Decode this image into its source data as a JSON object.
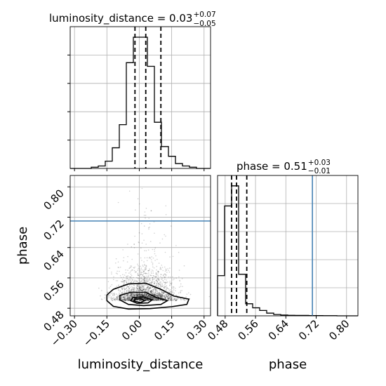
{
  "chart_data": {
    "type": "corner",
    "parameters": [
      "luminosity_distance",
      "phase"
    ],
    "truths": {
      "luminosity_distance": null,
      "phase": 0.71
    },
    "luminosity_distance": {
      "title_prefix": "luminosity_distance = 0.03",
      "title_plus": "+0.07",
      "title_minus": "−0.05",
      "median": 0.03,
      "q_low": -0.02,
      "q_high": 0.1,
      "range": [
        -0.32,
        0.33
      ],
      "ticks": [
        -0.3,
        -0.15,
        0.0,
        0.15,
        0.3
      ],
      "tick_labels": [
        "−0.30",
        "−0.15",
        "0.00",
        "0.15",
        "0.30"
      ],
      "xlabel": "luminosity_distance",
      "hist_edges": [
        -0.32,
        -0.2875,
        -0.255,
        -0.2225,
        -0.19,
        -0.1575,
        -0.125,
        -0.0925,
        -0.06,
        -0.0275,
        0.005,
        0.0375,
        0.07,
        0.1025,
        0.135,
        0.1675,
        0.2,
        0.2325,
        0.265,
        0.2975,
        0.33
      ],
      "hist_counts": [
        0,
        0,
        0,
        1,
        2,
        6,
        17,
        36,
        87,
        108,
        108,
        84,
        38,
        18,
        10,
        4,
        2,
        1,
        0,
        0
      ]
    },
    "phase": {
      "title_prefix": "phase = 0.51",
      "title_plus": "+0.03",
      "title_minus": "−0.01",
      "median": 0.51,
      "q_low": 0.497,
      "q_high": 0.537,
      "range": [
        0.46,
        0.83
      ],
      "ticks": [
        0.48,
        0.56,
        0.64,
        0.72,
        0.8
      ],
      "tick_labels": [
        "0.48",
        "0.56",
        "0.64",
        "0.72",
        "0.80"
      ],
      "xlabel": "phase",
      "ylabel": "phase",
      "hist_edges": [
        0.46,
        0.4785,
        0.497,
        0.5155,
        0.534,
        0.5525,
        0.571,
        0.5895,
        0.608,
        0.6265,
        0.645,
        0.6635,
        0.682,
        0.7005,
        0.719,
        0.7375,
        0.756,
        0.7745,
        0.793,
        0.8115,
        0.83
      ],
      "hist_counts": [
        30,
        82,
        97,
        31,
        9,
        6,
        4,
        2,
        1,
        0.6,
        0.4,
        0.3,
        0.3,
        0.2,
        0.2,
        0.1,
        0.1,
        0,
        0,
        0
      ]
    },
    "joint_contours": [
      [
        [
          -0.15,
          0.5
        ],
        [
          -0.12,
          0.485
        ],
        [
          -0.05,
          0.478
        ],
        [
          0.05,
          0.479
        ],
        [
          0.15,
          0.484
        ],
        [
          0.22,
          0.49
        ],
        [
          0.23,
          0.504
        ],
        [
          0.16,
          0.512
        ],
        [
          0.1,
          0.53
        ],
        [
          0.03,
          0.546
        ],
        [
          -0.05,
          0.544
        ],
        [
          -0.12,
          0.53
        ],
        [
          -0.15,
          0.515
        ]
      ],
      [
        [
          -0.09,
          0.502
        ],
        [
          -0.05,
          0.49
        ],
        [
          0.02,
          0.487
        ],
        [
          0.1,
          0.49
        ],
        [
          0.13,
          0.5
        ],
        [
          0.08,
          0.508
        ],
        [
          0.03,
          0.522
        ],
        [
          -0.04,
          0.522
        ],
        [
          -0.09,
          0.514
        ]
      ],
      [
        [
          -0.04,
          0.5
        ],
        [
          -0.01,
          0.493
        ],
        [
          0.04,
          0.494
        ],
        [
          0.06,
          0.502
        ],
        [
          0.02,
          0.51
        ],
        [
          -0.03,
          0.508
        ]
      ],
      [
        [
          -0.025,
          0.499
        ],
        [
          0.005,
          0.495
        ],
        [
          0.025,
          0.5
        ],
        [
          0.005,
          0.505
        ],
        [
          -0.02,
          0.504
        ]
      ]
    ],
    "shade_colors": [
      "#cfcfcf",
      "#a9a9a9",
      "#6d6d6d",
      "#000000"
    ]
  }
}
